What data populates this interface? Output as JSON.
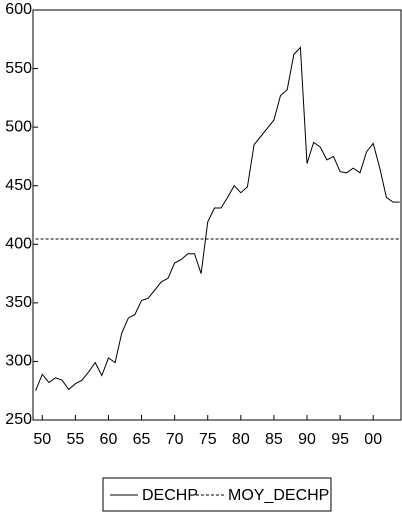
{
  "chart_data": {
    "type": "line",
    "x": [
      1949,
      1950,
      1951,
      1952,
      1953,
      1954,
      1955,
      1956,
      1957,
      1958,
      1959,
      1960,
      1961,
      1962,
      1963,
      1964,
      1965,
      1966,
      1967,
      1968,
      1969,
      1970,
      1971,
      1972,
      1973,
      1974,
      1975,
      1976,
      1977,
      1978,
      1979,
      1980,
      1981,
      1982,
      1983,
      1984,
      1985,
      1986,
      1987,
      1988,
      1989,
      1990,
      1991,
      1992,
      1993,
      1994,
      1995,
      1996,
      1997,
      1998,
      1999,
      2000,
      2001,
      2002,
      2003,
      2004
    ],
    "series": [
      {
        "name": "DECHP",
        "color": "#000000",
        "dash": false,
        "values": [
          275,
          289,
          282,
          286,
          284,
          276,
          281,
          284,
          291,
          299,
          288,
          303,
          299,
          324,
          337,
          340,
          352,
          354,
          361,
          368,
          371,
          384,
          387,
          392,
          392,
          375,
          419,
          431,
          431,
          440,
          450,
          444,
          449,
          485,
          492,
          499,
          506,
          527,
          532,
          562,
          568,
          469,
          487,
          483,
          472,
          475,
          462,
          461,
          465,
          461,
          479,
          486,
          465,
          440,
          436,
          436
        ]
      },
      {
        "name": "MOY_DECHP",
        "color": "#000000",
        "dash": true,
        "values": [
          404.5,
          404.5,
          404.5,
          404.5,
          404.5,
          404.5,
          404.5,
          404.5,
          404.5,
          404.5,
          404.5,
          404.5,
          404.5,
          404.5,
          404.5,
          404.5,
          404.5,
          404.5,
          404.5,
          404.5,
          404.5,
          404.5,
          404.5,
          404.5,
          404.5,
          404.5,
          404.5,
          404.5,
          404.5,
          404.5,
          404.5,
          404.5,
          404.5,
          404.5,
          404.5,
          404.5,
          404.5,
          404.5,
          404.5,
          404.5,
          404.5,
          404.5,
          404.5,
          404.5,
          404.5,
          404.5,
          404.5,
          404.5,
          404.5,
          404.5,
          404.5,
          404.5,
          404.5,
          404.5,
          404.5,
          404.5
        ]
      }
    ],
    "xlim": [
      1948.6,
      2004.2
    ],
    "xticks": [
      {
        "value": 1950,
        "label": "50"
      },
      {
        "value": 1955,
        "label": "55"
      },
      {
        "value": 1960,
        "label": "60"
      },
      {
        "value": 1965,
        "label": "65"
      },
      {
        "value": 1970,
        "label": "70"
      },
      {
        "value": 1975,
        "label": "75"
      },
      {
        "value": 1980,
        "label": "80"
      },
      {
        "value": 1985,
        "label": "85"
      },
      {
        "value": 1990,
        "label": "90"
      },
      {
        "value": 1995,
        "label": "95"
      },
      {
        "value": 2000,
        "label": "00"
      }
    ],
    "ylim": [
      250,
      600
    ],
    "yticks": [
      250,
      300,
      350,
      400,
      450,
      500,
      550,
      600
    ],
    "legend": "bottom"
  }
}
